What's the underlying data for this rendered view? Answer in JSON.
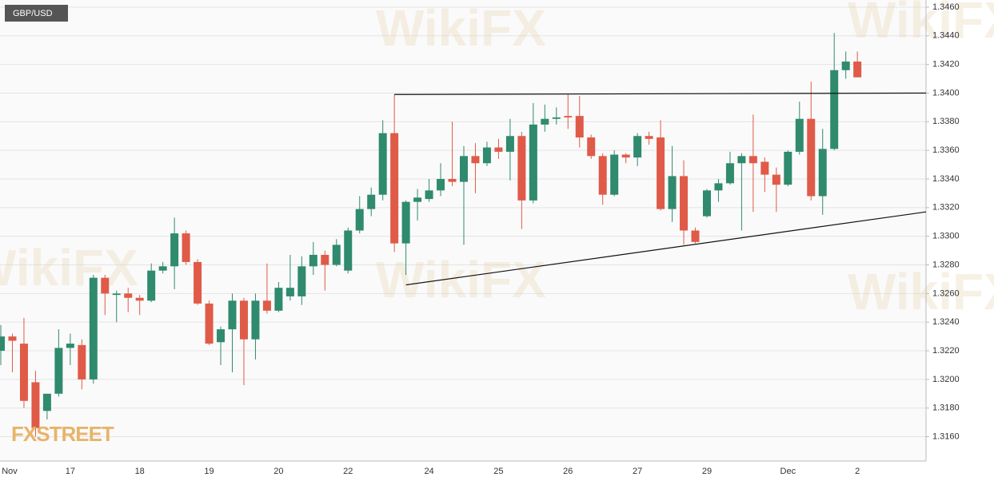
{
  "chart_data": {
    "type": "candlestick",
    "symbol": "GBP/USD",
    "brand": "FXSTREET",
    "watermark": "WikiFX",
    "categories": [
      "Nov",
      null,
      null,
      null,
      null,
      null,
      "17",
      null,
      null,
      null,
      null,
      null,
      "18",
      null,
      null,
      null,
      null,
      null,
      "19",
      null,
      null,
      null,
      null,
      null,
      "20",
      null,
      null,
      null,
      null,
      null,
      "22",
      null,
      null,
      null,
      null,
      null,
      null,
      "24",
      null,
      null,
      null,
      null,
      null,
      "25",
      null,
      null,
      null,
      null,
      null,
      "26",
      null,
      null,
      null,
      null,
      null,
      "27",
      null,
      null,
      null,
      null,
      null,
      "29",
      null,
      null,
      null,
      null,
      null,
      null,
      "Dec",
      null,
      null,
      null,
      null,
      null,
      "2"
    ],
    "open": [
      1.322,
      1.323,
      1.3225,
      1.3198,
      1.3178,
      1.319,
      1.3222,
      1.3224,
      1.32,
      1.3271,
      1.3259,
      1.326,
      1.3257,
      1.3255,
      1.3276,
      1.3279,
      1.3302,
      1.3282,
      1.3253,
      1.3226,
      1.3235,
      1.3255,
      1.3228,
      1.3255,
      1.3248,
      1.3258,
      1.3258,
      1.3279,
      1.3287,
      1.328,
      1.3276,
      1.3304,
      1.3319,
      1.3329,
      1.3372,
      1.3295,
      1.3324,
      1.3326,
      1.3332,
      1.334,
      1.3338,
      1.3356,
      1.3351,
      1.3362,
      1.3359,
      1.337,
      1.3325,
      1.3378,
      1.3382,
      1.3384,
      1.3384,
      1.3369,
      1.3356,
      1.3329,
      1.3357,
      1.3355,
      1.337,
      1.3369,
      1.3319,
      1.3342,
      1.3304,
      1.3314,
      1.3332,
      1.3337,
      1.3351,
      1.3356,
      1.3352,
      1.3343,
      1.3336,
      1.3359,
      1.3382,
      1.3328,
      1.3361,
      1.3416,
      1.3422
    ],
    "high": [
      1.3238,
      1.3232,
      1.3243,
      1.3206,
      1.319,
      1.3235,
      1.3232,
      1.3228,
      1.3273,
      1.3273,
      1.3262,
      1.3264,
      1.3259,
      1.3281,
      1.3282,
      1.3313,
      1.3304,
      1.3284,
      1.3255,
      1.3237,
      1.326,
      1.3257,
      1.326,
      1.3281,
      1.3268,
      1.3287,
      1.3286,
      1.3296,
      1.329,
      1.3298,
      1.3306,
      1.3328,
      1.3334,
      1.3381,
      1.3399,
      1.3325,
      1.3333,
      1.334,
      1.3351,
      1.338,
      1.3363,
      1.3365,
      1.3366,
      1.3368,
      1.3382,
      1.3373,
      1.3393,
      1.3392,
      1.339,
      1.3399,
      1.3398,
      1.3371,
      1.3358,
      1.336,
      1.3358,
      1.3372,
      1.3373,
      1.3381,
      1.3363,
      1.3353,
      1.3306,
      1.3333,
      1.334,
      1.3359,
      1.3358,
      1.3385,
      1.3355,
      1.3348,
      1.336,
      1.3394,
      1.3408,
      1.3375,
      1.3442,
      1.3429,
      1.3429
    ],
    "low": [
      1.321,
      1.3205,
      1.318,
      1.316,
      1.3172,
      1.3188,
      1.321,
      1.3193,
      1.3197,
      1.3245,
      1.324,
      1.3247,
      1.3245,
      1.3254,
      1.3274,
      1.3263,
      1.328,
      1.3252,
      1.3224,
      1.321,
      1.3205,
      1.3196,
      1.3214,
      1.3246,
      1.3247,
      1.3255,
      1.3252,
      1.3273,
      1.3262,
      1.3279,
      1.3274,
      1.3302,
      1.3314,
      1.3325,
      1.3289,
      1.3273,
      1.3311,
      1.3324,
      1.3328,
      1.3335,
      1.3294,
      1.333,
      1.3349,
      1.3354,
      1.3339,
      1.3305,
      1.3323,
      1.3373,
      1.3378,
      1.3375,
      1.3362,
      1.3354,
      1.3322,
      1.3328,
      1.3351,
      1.3349,
      1.3364,
      1.3318,
      1.331,
      1.3294,
      1.3295,
      1.3313,
      1.3324,
      1.3336,
      1.3304,
      1.3317,
      1.3331,
      1.3317,
      1.3335,
      1.3357,
      1.3325,
      1.3315,
      1.336,
      1.341,
      1.3411
    ],
    "close": [
      1.323,
      1.3227,
      1.3185,
      1.3166,
      1.319,
      1.3222,
      1.3225,
      1.32,
      1.3271,
      1.326,
      1.326,
      1.3257,
      1.3255,
      1.3276,
      1.3279,
      1.3302,
      1.3282,
      1.3253,
      1.3225,
      1.3235,
      1.3255,
      1.3228,
      1.3255,
      1.3248,
      1.3264,
      1.3264,
      1.3279,
      1.3287,
      1.328,
      1.3294,
      1.3304,
      1.3319,
      1.3329,
      1.3372,
      1.3295,
      1.3324,
      1.3327,
      1.3332,
      1.334,
      1.3338,
      1.3356,
      1.3351,
      1.3362,
      1.3359,
      1.337,
      1.3325,
      1.3378,
      1.3382,
      1.3383,
      1.3383,
      1.3369,
      1.3356,
      1.3329,
      1.3357,
      1.3355,
      1.337,
      1.3368,
      1.3319,
      1.3342,
      1.3304,
      1.3296,
      1.3332,
      1.3337,
      1.3351,
      1.3356,
      1.3351,
      1.3343,
      1.3336,
      1.3359,
      1.3382,
      1.3328,
      1.3361,
      1.3416,
      1.3422,
      1.3411
    ],
    "up_color": "#2f8a6e",
    "down_color": "#e05a48",
    "trendlines": [
      {
        "start": [
          34,
          1.3399
        ],
        "end": [
          80,
          1.34
        ]
      },
      {
        "start": [
          35,
          1.3266
        ],
        "end": [
          80,
          1.3317
        ]
      }
    ],
    "ylim": [
      1.3143,
      1.3465
    ],
    "yticks": [
      {
        "value": 1.316,
        "label": "1.3160"
      },
      {
        "value": 1.318,
        "label": "1.3180"
      },
      {
        "value": 1.32,
        "label": "1.3200"
      },
      {
        "value": 1.322,
        "label": "1.3220"
      },
      {
        "value": 1.324,
        "label": "1.3240"
      },
      {
        "value": 1.326,
        "label": "1.3260"
      },
      {
        "value": 1.328,
        "label": "1.3280"
      },
      {
        "value": 1.33,
        "label": "1.3300"
      },
      {
        "value": 1.332,
        "label": "1.3320"
      },
      {
        "value": 1.334,
        "label": "1.3340"
      },
      {
        "value": 1.336,
        "label": "1.3360"
      },
      {
        "value": 1.338,
        "label": "1.3380"
      },
      {
        "value": 1.34,
        "label": "1.3400"
      },
      {
        "value": 1.342,
        "label": "1.3420"
      },
      {
        "value": 1.344,
        "label": "1.3440"
      },
      {
        "value": 1.346,
        "label": "1.3460"
      }
    ],
    "grid": true
  }
}
